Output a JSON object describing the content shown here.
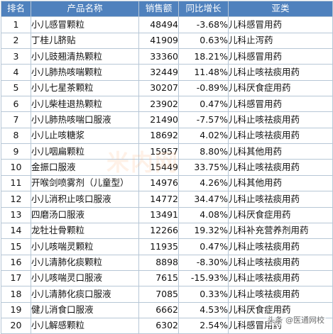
{
  "table": {
    "headers": [
      "排名",
      "产品名称",
      "销售额",
      "同比增长",
      "亚类"
    ],
    "rows": [
      {
        "rank": "1",
        "name": "小儿感冒颗粒",
        "sales": "48494",
        "growth": "-3.68%",
        "category": "儿科感冒用药"
      },
      {
        "rank": "2",
        "name": "丁桂儿脐贴",
        "sales": "41909",
        "growth": "0.63%",
        "category": "儿科止泻药"
      },
      {
        "rank": "3",
        "name": "小儿豉翘清热颗粒",
        "sales": "33360",
        "growth": "18.21%",
        "category": "儿科感冒用药"
      },
      {
        "rank": "4",
        "name": "小儿肺热咳喘颗粒",
        "sales": "32449",
        "growth": "11.48%",
        "category": "儿科止咳祛痰用药"
      },
      {
        "rank": "5",
        "name": "小儿七星茶颗粒",
        "sales": "30207",
        "growth": "-0.89%",
        "category": "儿科厌食症用药"
      },
      {
        "rank": "6",
        "name": "小儿柴桂退热颗粒",
        "sales": "23902",
        "growth": "0.47%",
        "category": "儿科感冒用药"
      },
      {
        "rank": "7",
        "name": "小儿肺热咳喘口服液",
        "sales": "21490",
        "growth": "-7.57%",
        "category": "儿科止咳祛痰用药"
      },
      {
        "rank": "8",
        "name": "小儿止咳糖浆",
        "sales": "18692",
        "growth": "4.02%",
        "category": "儿科止咳祛痰用药"
      },
      {
        "rank": "9",
        "name": "小儿咽扁颗粒",
        "sales": "15957",
        "growth": "8.80%",
        "category": "儿科其他用药"
      },
      {
        "rank": "10",
        "name": "金振口服液",
        "sales": "15449",
        "growth": "33.75%",
        "category": "儿科止咳祛痰用药"
      },
      {
        "rank": "11",
        "name": "开喉剑喷雾剂（儿童型）",
        "sales": "14976",
        "growth": "4.26%",
        "category": "儿科其他用药"
      },
      {
        "rank": "12",
        "name": "小儿消积止咳口服液",
        "sales": "14772",
        "growth": "34.47%",
        "category": "儿科止咳祛痰用药"
      },
      {
        "rank": "13",
        "name": "四磨汤口服液",
        "sales": "13491",
        "growth": "4.08%",
        "category": "儿科厌食症用药"
      },
      {
        "rank": "14",
        "name": "龙牡壮骨颗粒",
        "sales": "12266",
        "growth": "19.32%",
        "category": "儿科补充营养剂用药"
      },
      {
        "rank": "15",
        "name": "小儿咳喘灵颗粒",
        "sales": "11935",
        "growth": "0.47%",
        "category": "儿科止咳祛痰用药"
      },
      {
        "rank": "16",
        "name": "小儿清肺化痰颗粒",
        "sales": "8898",
        "growth": "-8.30%",
        "category": "儿科止咳祛痰用药"
      },
      {
        "rank": "17",
        "name": "小儿咳喘灵口服液",
        "sales": "7615",
        "growth": "-15.93%",
        "category": "儿科止咳祛痰用药"
      },
      {
        "rank": "18",
        "name": "小儿清肺化痰口服液",
        "sales": "7085",
        "growth": "0.33%",
        "category": "儿科止咳祛痰用药"
      },
      {
        "rank": "19",
        "name": "健儿消食口服液",
        "sales": "6662",
        "growth": "4.53%",
        "category": "儿科厌食症用药"
      },
      {
        "rank": "20",
        "name": "小儿解感颗粒",
        "sales": "6302",
        "growth": "2.54%",
        "category": "儿科感冒用药"
      }
    ]
  },
  "colors": {
    "header_bg": "#4f81bd",
    "header_text": "#ffffff",
    "border": "#b7c7d6"
  },
  "watermarks": {
    "center": "米内网",
    "corner": "头条 @医通网校"
  }
}
